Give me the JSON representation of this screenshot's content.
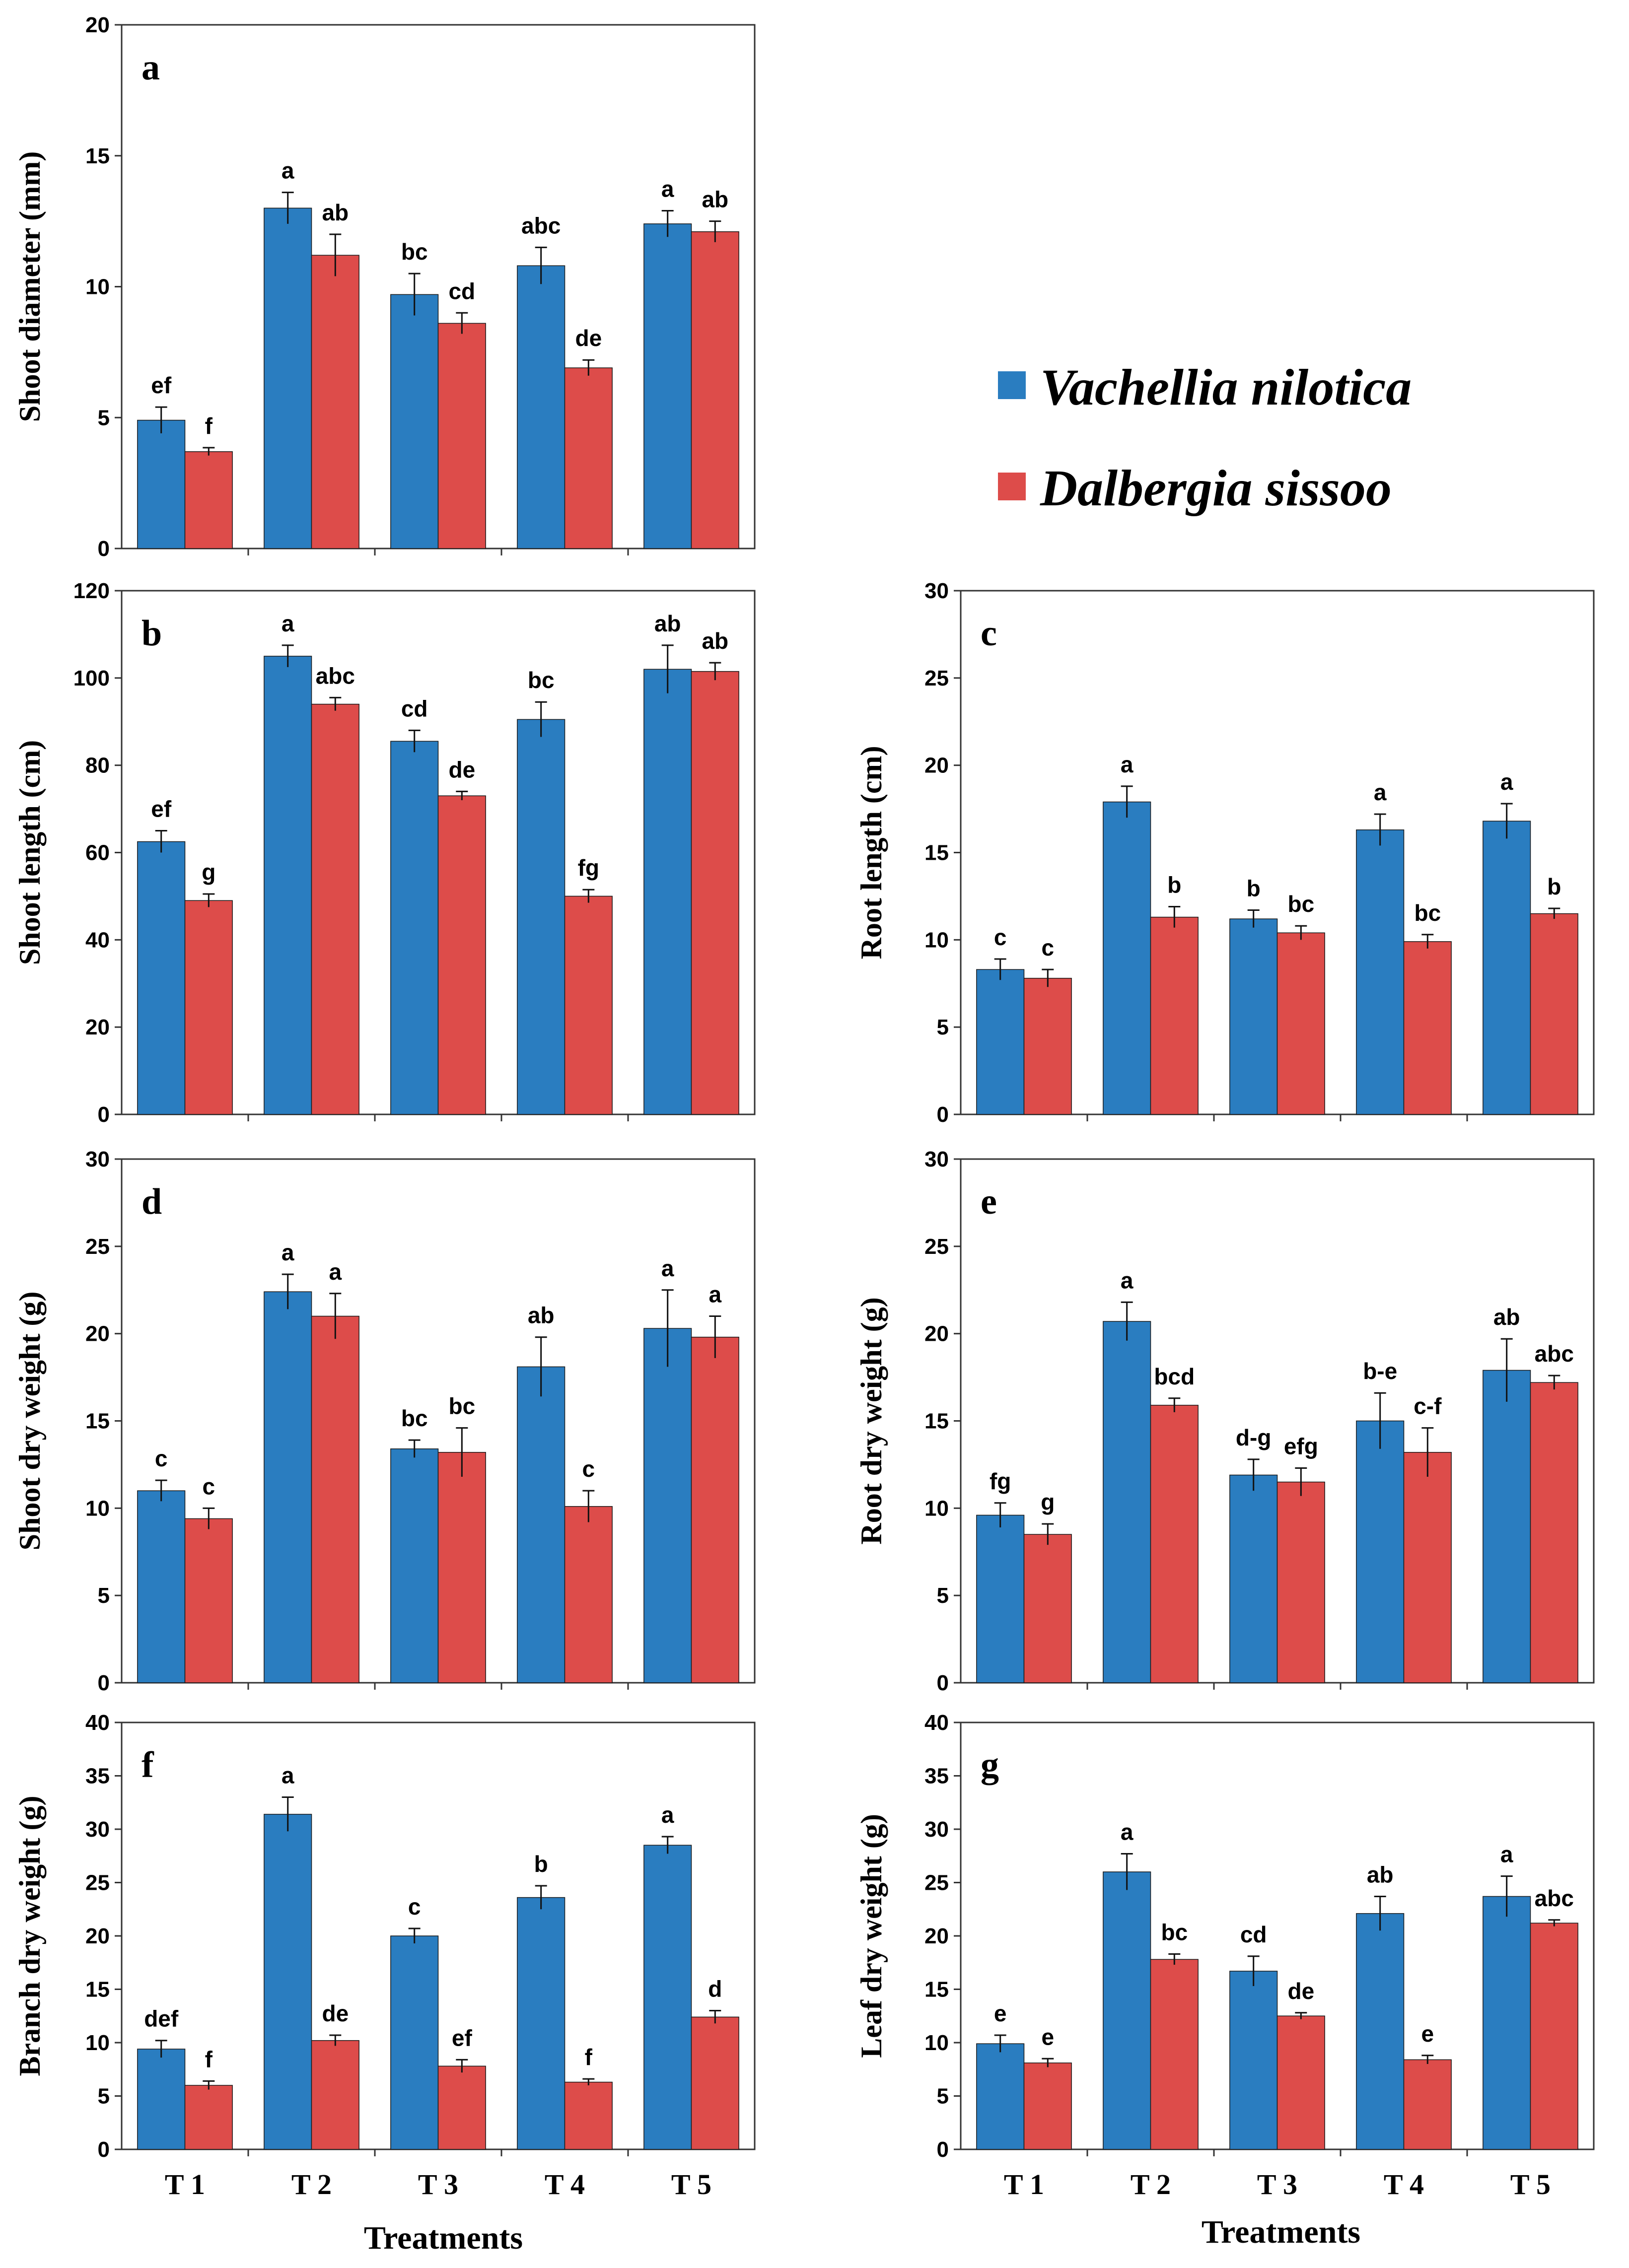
{
  "legend": {
    "series": [
      {
        "name": "Vachellia nilotica",
        "color": "#2a7dc0"
      },
      {
        "name": "Dalbergia sissoo",
        "color": "#dd4c4a"
      }
    ]
  },
  "x_title": "Treatments",
  "chart_data": [
    {
      "id": "a",
      "type": "bar",
      "label": "a",
      "ylabel": "Shoot diameter (mm)",
      "categories": [
        "T 1",
        "T 2",
        "T 3",
        "T 4",
        "T 5"
      ],
      "ylim": [
        0,
        20
      ],
      "yticks": [
        0,
        5,
        10,
        15,
        20
      ],
      "show_xticks": false,
      "series": [
        {
          "name": "Vachellia nilotica",
          "values": [
            4.9,
            13.0,
            9.7,
            10.8,
            12.4
          ],
          "errors": [
            0.5,
            0.6,
            0.8,
            0.7,
            0.5
          ],
          "letters": [
            "ef",
            "a",
            "bc",
            "abc",
            "a"
          ]
        },
        {
          "name": "Dalbergia sissoo",
          "values": [
            3.7,
            11.2,
            8.6,
            6.9,
            12.1
          ],
          "errors": [
            0.15,
            0.8,
            0.4,
            0.3,
            0.4
          ],
          "letters": [
            "f",
            "ab",
            "cd",
            "de",
            "ab"
          ]
        }
      ]
    },
    {
      "id": "b",
      "type": "bar",
      "label": "b",
      "ylabel": "Shoot length (cm)",
      "categories": [
        "T 1",
        "T 2",
        "T 3",
        "T 4",
        "T 5"
      ],
      "ylim": [
        0,
        120
      ],
      "yticks": [
        0,
        20,
        40,
        60,
        80,
        100,
        120
      ],
      "show_xticks": false,
      "series": [
        {
          "name": "Vachellia nilotica",
          "values": [
            62.5,
            105.0,
            85.5,
            90.5,
            102.0
          ],
          "errors": [
            2.5,
            2.5,
            2.5,
            4.0,
            5.5
          ],
          "letters": [
            "ef",
            "a",
            "cd",
            "bc",
            "ab"
          ]
        },
        {
          "name": "Dalbergia sissoo",
          "values": [
            49.0,
            94.0,
            73.0,
            50.0,
            101.5
          ],
          "errors": [
            1.5,
            1.5,
            1.0,
            1.5,
            2.0
          ],
          "letters": [
            "g",
            "abc",
            "de",
            "fg",
            "ab"
          ]
        }
      ]
    },
    {
      "id": "c",
      "type": "bar",
      "label": "c",
      "ylabel": "Root length (cm)",
      "categories": [
        "T 1",
        "T 2",
        "T 3",
        "T 4",
        "T 5"
      ],
      "ylim": [
        0,
        30
      ],
      "yticks": [
        0,
        5,
        10,
        15,
        20,
        25,
        30
      ],
      "show_xticks": false,
      "series": [
        {
          "name": "Vachellia nilotica",
          "values": [
            8.3,
            17.9,
            11.2,
            16.3,
            16.8
          ],
          "errors": [
            0.6,
            0.9,
            0.5,
            0.9,
            1.0
          ],
          "letters": [
            "c",
            "a",
            "b",
            "a",
            "a"
          ]
        },
        {
          "name": "Dalbergia sissoo",
          "values": [
            7.8,
            11.3,
            10.4,
            9.9,
            11.5
          ],
          "errors": [
            0.5,
            0.6,
            0.4,
            0.4,
            0.3
          ],
          "letters": [
            "c",
            "b",
            "bc",
            "bc",
            "b"
          ]
        }
      ]
    },
    {
      "id": "d",
      "type": "bar",
      "label": "d",
      "ylabel": "Shoot dry weight (g)",
      "categories": [
        "T 1",
        "T 2",
        "T 3",
        "T 4",
        "T 5"
      ],
      "ylim": [
        0,
        30
      ],
      "yticks": [
        0,
        5,
        10,
        15,
        20,
        25,
        30
      ],
      "show_xticks": false,
      "series": [
        {
          "name": "Vachellia nilotica",
          "values": [
            11.0,
            22.4,
            13.4,
            18.1,
            20.3
          ],
          "errors": [
            0.6,
            1.0,
            0.5,
            1.7,
            2.2
          ],
          "letters": [
            "c",
            "a",
            "bc",
            "ab",
            "a"
          ]
        },
        {
          "name": "Dalbergia sissoo",
          "values": [
            9.4,
            21.0,
            13.2,
            10.1,
            19.8
          ],
          "errors": [
            0.6,
            1.3,
            1.4,
            0.9,
            1.2
          ],
          "letters": [
            "c",
            "a",
            "bc",
            "c",
            "a"
          ]
        }
      ]
    },
    {
      "id": "e",
      "type": "bar",
      "label": "e",
      "ylabel": "Root dry weight (g)",
      "categories": [
        "T 1",
        "T 2",
        "T 3",
        "T 4",
        "T 5"
      ],
      "ylim": [
        0,
        30
      ],
      "yticks": [
        0,
        5,
        10,
        15,
        20,
        25,
        30
      ],
      "show_xticks": false,
      "series": [
        {
          "name": "Vachellia nilotica",
          "values": [
            9.6,
            20.7,
            11.9,
            15.0,
            17.9
          ],
          "errors": [
            0.7,
            1.1,
            0.9,
            1.6,
            1.8
          ],
          "letters": [
            "fg",
            "a",
            "d-g",
            "b-e",
            "ab"
          ]
        },
        {
          "name": "Dalbergia sissoo",
          "values": [
            8.5,
            15.9,
            11.5,
            13.2,
            17.2
          ],
          "errors": [
            0.6,
            0.4,
            0.8,
            1.4,
            0.4
          ],
          "letters": [
            "g",
            "bcd",
            "efg",
            "c-f",
            "abc"
          ]
        }
      ]
    },
    {
      "id": "f",
      "type": "bar",
      "label": "f",
      "ylabel": "Branch dry weight (g)",
      "categories": [
        "T 1",
        "T 2",
        "T 3",
        "T 4",
        "T 5"
      ],
      "ylim": [
        0,
        40
      ],
      "yticks": [
        0,
        5,
        10,
        15,
        20,
        25,
        30,
        35,
        40
      ],
      "show_xticks": true,
      "series": [
        {
          "name": "Vachellia nilotica",
          "values": [
            9.4,
            31.4,
            20.0,
            23.6,
            28.5
          ],
          "errors": [
            0.8,
            1.6,
            0.7,
            1.1,
            0.8
          ],
          "letters": [
            "def",
            "a",
            "c",
            "b",
            "a"
          ]
        },
        {
          "name": "Dalbergia sissoo",
          "values": [
            6.0,
            10.2,
            7.8,
            6.3,
            12.4
          ],
          "errors": [
            0.4,
            0.5,
            0.6,
            0.3,
            0.6
          ],
          "letters": [
            "f",
            "de",
            "ef",
            "f",
            "d"
          ]
        }
      ]
    },
    {
      "id": "g",
      "type": "bar",
      "label": "g",
      "ylabel": "Leaf dry weight (g)",
      "categories": [
        "T 1",
        "T 2",
        "T 3",
        "T 4",
        "T 5"
      ],
      "ylim": [
        0,
        40
      ],
      "yticks": [
        0,
        5,
        10,
        15,
        20,
        25,
        30,
        35,
        40
      ],
      "show_xticks": true,
      "series": [
        {
          "name": "Vachellia nilotica",
          "values": [
            9.9,
            26.0,
            16.7,
            22.1,
            23.7
          ],
          "errors": [
            0.8,
            1.7,
            1.4,
            1.6,
            1.9
          ],
          "letters": [
            "e",
            "a",
            "cd",
            "ab",
            "a"
          ]
        },
        {
          "name": "Dalbergia sissoo",
          "values": [
            8.1,
            17.8,
            12.5,
            8.4,
            21.2
          ],
          "errors": [
            0.4,
            0.5,
            0.3,
            0.4,
            0.3
          ],
          "letters": [
            "e",
            "bc",
            "de",
            "e",
            "abc"
          ]
        }
      ]
    }
  ]
}
